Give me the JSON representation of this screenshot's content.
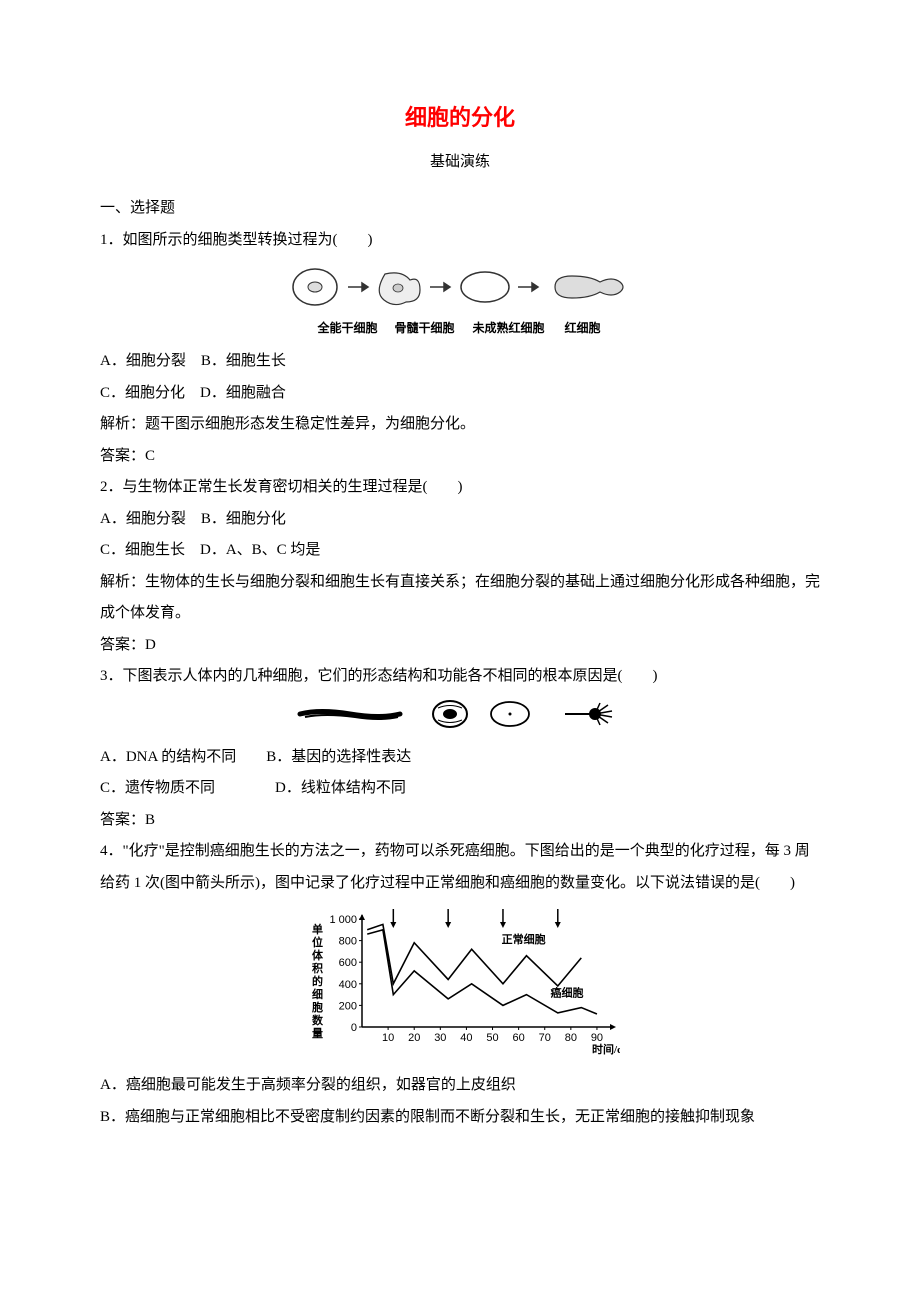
{
  "title": "细胞的分化",
  "subtitle": "基础演练",
  "section1": "一、选择题",
  "q1": {
    "stem": "1．如图所示的细胞类型转换过程为(　　)",
    "labels": {
      "a": "全能干细胞",
      "b": "骨髓干细胞",
      "c": "未成熟红细胞",
      "d": "红细胞"
    },
    "optA": "A．细胞分裂　B．细胞生长",
    "optC": "C．细胞分化　D．细胞融合",
    "expl": "解析：题干图示细胞形态发生稳定性差异，为细胞分化。",
    "ans": "答案：C"
  },
  "q2": {
    "stem": "2．与生物体正常生长发育密切相关的生理过程是(　　)",
    "optA": "A．细胞分裂　B．细胞分化",
    "optC": "C．细胞生长　D．A、B、C 均是",
    "expl": "解析：生物体的生长与细胞分裂和细胞生长有直接关系；在细胞分裂的基础上通过细胞分化形成各种细胞，完成个体发育。",
    "ans": "答案：D"
  },
  "q3": {
    "stem": "3．下图表示人体内的几种细胞，它们的形态结构和功能各不相同的根本原因是(　　)",
    "optA": "A．DNA 的结构不同　　B．基因的选择性表达",
    "optC": "C．遗传物质不同　　　　D．线粒体结构不同",
    "ans": "答案：B"
  },
  "q4": {
    "stem": "4．\"化疗\"是控制癌细胞生长的方法之一，药物可以杀死癌细胞。下图给出的是一个典型的化疗过程，每 3 周给药 1 次(图中箭头所示)，图中记录了化疗过程中正常细胞和癌细胞的数量变化。以下说法错误的是(　　)",
    "optA": "A．癌细胞最可能发生于高频率分裂的组织，如器官的上皮组织",
    "optB": "B．癌细胞与正常细胞相比不受密度制约因素的限制而不断分裂和生长，无正常细胞的接触抑制现象"
  },
  "chart": {
    "ylabel": "单位体积的细胞数量",
    "xlabel": "时间/d",
    "series1_label": "正常细胞",
    "series2_label": "癌细胞",
    "yticks": [
      0,
      200,
      400,
      600,
      800,
      1000
    ],
    "xticks": [
      10,
      20,
      30,
      40,
      50,
      60,
      70,
      80,
      90
    ],
    "ylim": [
      0,
      1000
    ],
    "xlim": [
      0,
      95
    ],
    "normal_points": [
      [
        2,
        900
      ],
      [
        8,
        950
      ],
      [
        12,
        400
      ],
      [
        20,
        780
      ],
      [
        33,
        440
      ],
      [
        42,
        720
      ],
      [
        54,
        400
      ],
      [
        63,
        660
      ],
      [
        75,
        380
      ],
      [
        84,
        640
      ]
    ],
    "cancer_points": [
      [
        2,
        860
      ],
      [
        8,
        900
      ],
      [
        12,
        300
      ],
      [
        20,
        520
      ],
      [
        33,
        260
      ],
      [
        42,
        400
      ],
      [
        54,
        200
      ],
      [
        63,
        300
      ],
      [
        75,
        130
      ],
      [
        84,
        180
      ],
      [
        90,
        120
      ]
    ],
    "arrows_x": [
      12,
      33,
      54,
      75
    ],
    "colors": {
      "bg": "#ffffff",
      "axis": "#000000",
      "line": "#000000",
      "text": "#000000"
    },
    "font_size": 11
  },
  "diagram1_svg": {
    "stroke": "#333333",
    "fill": "#e8e8e8"
  }
}
